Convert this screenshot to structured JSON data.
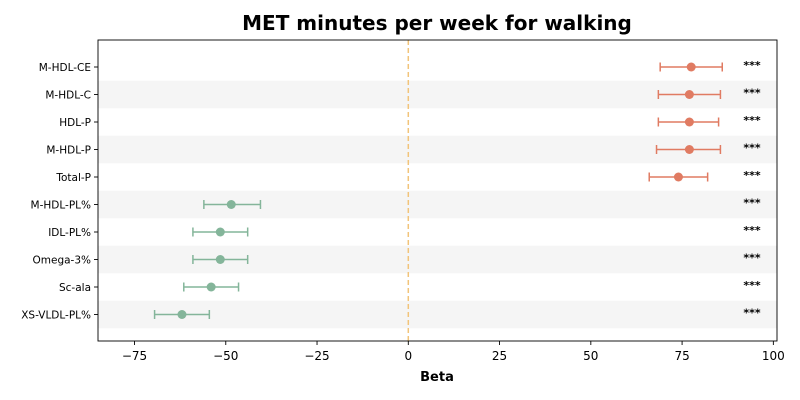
{
  "chart_data": {
    "type": "forest",
    "title": "MET minutes per week for walking",
    "xlabel": "Beta",
    "ylabel": "",
    "xlim": [
      -85,
      101
    ],
    "xticks": [
      -75,
      -50,
      -25,
      0,
      25,
      50,
      75,
      100
    ],
    "xtick_labels": [
      "−75",
      "−50",
      "−25",
      "0",
      "25",
      "50",
      "75",
      "100"
    ],
    "reference_line": 0,
    "grid": false,
    "row_banding": true,
    "colors": {
      "positive": "#E07B62",
      "negative": "#84B59A",
      "reference_line": "#F2C47A",
      "band": "#F5F5F5"
    },
    "points": [
      {
        "label": "M-HDL-CE",
        "beta": 77.5,
        "ci_low": 69,
        "ci_high": 86,
        "significance": "***"
      },
      {
        "label": "M-HDL-C",
        "beta": 77,
        "ci_low": 68.5,
        "ci_high": 85.5,
        "significance": "***"
      },
      {
        "label": "HDL-P",
        "beta": 77,
        "ci_low": 68.5,
        "ci_high": 85,
        "significance": "***"
      },
      {
        "label": "M-HDL-P",
        "beta": 77,
        "ci_low": 68,
        "ci_high": 85.5,
        "significance": "***"
      },
      {
        "label": "Total-P",
        "beta": 74,
        "ci_low": 66,
        "ci_high": 82,
        "significance": "***"
      },
      {
        "label": "M-HDL-PL%",
        "beta": -48.5,
        "ci_low": -56,
        "ci_high": -40.5,
        "significance": "***"
      },
      {
        "label": "IDL-PL%",
        "beta": -51.5,
        "ci_low": -59,
        "ci_high": -44,
        "significance": "***"
      },
      {
        "label": "Omega-3%",
        "beta": -51.5,
        "ci_low": -59,
        "ci_high": -44,
        "significance": "***"
      },
      {
        "label": "Sc-ala",
        "beta": -54,
        "ci_low": -61.5,
        "ci_high": -46.5,
        "significance": "***"
      },
      {
        "label": "XS-VLDL-PL%",
        "beta": -62,
        "ci_low": -69.5,
        "ci_high": -54.5,
        "significance": "***"
      }
    ]
  }
}
